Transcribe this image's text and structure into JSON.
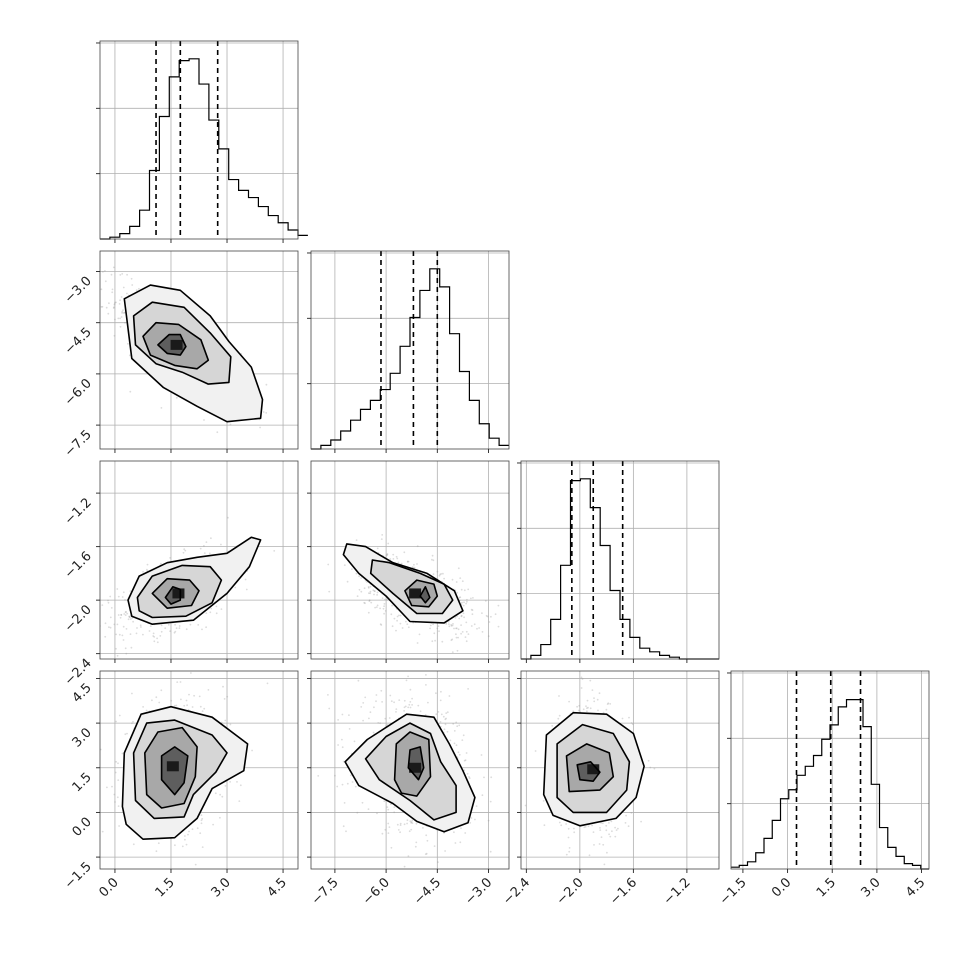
{
  "chart_data": {
    "type": "corner",
    "grid": true,
    "parameters": [
      {
        "range": [
          -0.4,
          4.9
        ],
        "ticks": [
          "0.0",
          "1.5",
          "3.0",
          "4.5"
        ],
        "tick_values": [
          0.0,
          1.5,
          3.0,
          4.5
        ],
        "quantiles": [
          1.1,
          1.75,
          2.75
        ],
        "hist": {
          "edges_start": -0.4,
          "bin_width": 0.265,
          "values": [
            0,
            1,
            3,
            7,
            16,
            38,
            68,
            90,
            99,
            100,
            86,
            66,
            50,
            33,
            27,
            23,
            18,
            13,
            9,
            5,
            2
          ]
        }
      },
      {
        "range": [
          -8.2,
          -2.4
        ],
        "ticks": [
          "-7.5",
          "-6.0",
          "-4.5",
          "-3.0"
        ],
        "tick_values": [
          -7.5,
          -6.0,
          -4.5,
          -3.0
        ],
        "quantiles": [
          -6.15,
          -5.2,
          -4.5
        ],
        "hist": {
          "edges_start": -8.2,
          "bin_width": 0.29,
          "values": [
            0,
            2,
            5,
            10,
            16,
            22,
            27,
            33,
            42,
            57,
            73,
            88,
            100,
            90,
            64,
            43,
            27,
            14,
            6,
            2
          ]
        }
      },
      {
        "range": [
          -2.44,
          -0.96
        ],
        "ticks": [
          "-2.4",
          "-2.0",
          "-1.6",
          "-1.2"
        ],
        "tick_values": [
          -2.4,
          -2.0,
          -1.6,
          -1.2
        ],
        "quantiles": [
          -2.06,
          -1.9,
          -1.68
        ],
        "hist": {
          "edges_start": -2.44,
          "bin_width": 0.074,
          "values": [
            0,
            2,
            8,
            22,
            52,
            99,
            100,
            84,
            63,
            38,
            22,
            12,
            6,
            4,
            2,
            1,
            0,
            0,
            0,
            0
          ]
        }
      },
      {
        "range": [
          -1.9,
          4.75
        ],
        "ticks": [
          "-1.5",
          "0.0",
          "1.5",
          "3.0",
          "4.5"
        ],
        "tick_values": [
          -1.5,
          0.0,
          1.5,
          3.0,
          4.5
        ],
        "quantiles": [
          0.3,
          1.45,
          2.45
        ],
        "hist": {
          "edges_start": -1.9,
          "bin_width": 0.2771,
          "values": [
            1,
            2,
            4,
            9,
            17,
            27,
            39,
            44,
            52,
            57,
            63,
            72,
            80,
            90,
            94,
            94,
            79,
            47,
            23,
            12,
            7,
            3,
            2,
            0
          ]
        }
      }
    ],
    "pairs": [
      {
        "row": 1,
        "col": 0,
        "center": [
          1.65,
          -5.15
        ],
        "sd": [
          0.8,
          0.85
        ],
        "rho": -0.75,
        "contours": [
          [
            [
              1.15,
              -5.15
            ],
            [
              1.45,
              -4.85
            ],
            [
              1.75,
              -4.85
            ],
            [
              1.9,
              -5.2
            ],
            [
              1.75,
              -5.45
            ],
            [
              1.4,
              -5.4
            ]
          ],
          [
            [
              0.75,
              -4.9
            ],
            [
              1.1,
              -4.5
            ],
            [
              1.7,
              -4.55
            ],
            [
              2.3,
              -5.0
            ],
            [
              2.5,
              -5.6
            ],
            [
              2.2,
              -5.85
            ],
            [
              1.6,
              -5.75
            ],
            [
              0.95,
              -5.45
            ]
          ],
          [
            [
              0.5,
              -4.3
            ],
            [
              1.0,
              -3.9
            ],
            [
              1.85,
              -4.05
            ],
            [
              2.55,
              -4.8
            ],
            [
              3.1,
              -5.5
            ],
            [
              3.05,
              -6.25
            ],
            [
              2.5,
              -6.3
            ],
            [
              1.8,
              -5.95
            ],
            [
              1.1,
              -5.7
            ],
            [
              0.55,
              -5.15
            ]
          ],
          [
            [
              0.25,
              -3.8
            ],
            [
              0.95,
              -3.4
            ],
            [
              1.75,
              -3.55
            ],
            [
              2.55,
              -4.3
            ],
            [
              3.05,
              -5.05
            ],
            [
              3.65,
              -5.8
            ],
            [
              3.95,
              -6.75
            ],
            [
              3.9,
              -7.3
            ],
            [
              3.0,
              -7.4
            ],
            [
              2.2,
              -6.95
            ],
            [
              1.3,
              -6.4
            ],
            [
              0.45,
              -5.55
            ]
          ]
        ]
      },
      {
        "row": 2,
        "col": 0,
        "center": [
          1.7,
          -1.95
        ],
        "sd": [
          0.8,
          0.15
        ],
        "rho": 0.55,
        "contours": [
          [
            [
              1.35,
              -1.98
            ],
            [
              1.55,
              -1.9
            ],
            [
              1.75,
              -1.92
            ],
            [
              1.75,
              -2.0
            ],
            [
              1.5,
              -2.03
            ]
          ],
          [
            [
              1.0,
              -1.95
            ],
            [
              1.4,
              -1.84
            ],
            [
              2.0,
              -1.85
            ],
            [
              2.25,
              -1.93
            ],
            [
              2.05,
              -2.04
            ],
            [
              1.4,
              -2.06
            ]
          ],
          [
            [
              0.6,
              -1.98
            ],
            [
              1.0,
              -1.82
            ],
            [
              1.8,
              -1.74
            ],
            [
              2.55,
              -1.75
            ],
            [
              2.85,
              -1.85
            ],
            [
              2.6,
              -2.02
            ],
            [
              1.9,
              -2.12
            ],
            [
              1.0,
              -2.13
            ],
            [
              0.65,
              -2.08
            ]
          ],
          [
            [
              0.35,
              -2.0
            ],
            [
              0.65,
              -1.82
            ],
            [
              1.4,
              -1.72
            ],
            [
              2.2,
              -1.68
            ],
            [
              3.0,
              -1.65
            ],
            [
              3.65,
              -1.53
            ],
            [
              3.9,
              -1.55
            ],
            [
              3.6,
              -1.75
            ],
            [
              3.0,
              -1.95
            ],
            [
              2.1,
              -2.15
            ],
            [
              1.0,
              -2.18
            ],
            [
              0.45,
              -2.12
            ]
          ]
        ]
      },
      {
        "row": 2,
        "col": 1,
        "center": [
          -5.15,
          -1.95
        ],
        "sd": [
          0.85,
          0.15
        ],
        "rho": -0.55,
        "contours": [
          [
            [
              -5.0,
              -1.97
            ],
            [
              -4.85,
              -1.9
            ],
            [
              -4.72,
              -1.98
            ],
            [
              -4.85,
              -2.02
            ]
          ],
          [
            [
              -5.45,
              -1.93
            ],
            [
              -5.1,
              -1.85
            ],
            [
              -4.6,
              -1.88
            ],
            [
              -4.5,
              -1.97
            ],
            [
              -4.75,
              -2.05
            ],
            [
              -5.25,
              -2.04
            ]
          ],
          [
            [
              -6.4,
              -1.7
            ],
            [
              -5.9,
              -1.72
            ],
            [
              -5.0,
              -1.8
            ],
            [
              -4.3,
              -1.88
            ],
            [
              -4.05,
              -2.0
            ],
            [
              -4.35,
              -2.1
            ],
            [
              -5.1,
              -2.1
            ],
            [
              -5.8,
              -1.95
            ],
            [
              -6.45,
              -1.8
            ]
          ],
          [
            [
              -7.15,
              -1.58
            ],
            [
              -6.6,
              -1.6
            ],
            [
              -5.8,
              -1.72
            ],
            [
              -4.8,
              -1.8
            ],
            [
              -4.0,
              -1.93
            ],
            [
              -3.75,
              -2.08
            ],
            [
              -4.3,
              -2.17
            ],
            [
              -5.3,
              -2.16
            ],
            [
              -6.0,
              -1.97
            ],
            [
              -6.8,
              -1.8
            ],
            [
              -7.25,
              -1.66
            ]
          ]
        ]
      },
      {
        "row": 3,
        "col": 0,
        "center": [
          1.55,
          1.55
        ],
        "sd": [
          0.7,
          1.1
        ],
        "rho": 0.1,
        "contours": [
          [
            [
              1.25,
              1.1
            ],
            [
              1.25,
              1.9
            ],
            [
              1.6,
              2.2
            ],
            [
              1.95,
              1.9
            ],
            [
              1.85,
              1.0
            ],
            [
              1.6,
              0.6
            ]
          ],
          [
            [
              0.85,
              0.6
            ],
            [
              0.8,
              2.0
            ],
            [
              1.15,
              2.7
            ],
            [
              1.8,
              2.85
            ],
            [
              2.2,
              2.2
            ],
            [
              2.15,
              1.2
            ],
            [
              1.85,
              0.3
            ],
            [
              1.25,
              0.15
            ]
          ],
          [
            [
              0.55,
              0.4
            ],
            [
              0.5,
              2.0
            ],
            [
              0.85,
              3.0
            ],
            [
              1.6,
              3.1
            ],
            [
              2.6,
              2.6
            ],
            [
              3.0,
              2.0
            ],
            [
              2.7,
              1.35
            ],
            [
              2.1,
              0.6
            ],
            [
              1.85,
              -0.15
            ],
            [
              1.05,
              -0.2
            ]
          ],
          [
            [
              0.2,
              0.2
            ],
            [
              0.25,
              2.0
            ],
            [
              0.7,
              3.3
            ],
            [
              1.5,
              3.55
            ],
            [
              2.6,
              3.2
            ],
            [
              3.55,
              2.3
            ],
            [
              3.45,
              1.4
            ],
            [
              2.6,
              0.8
            ],
            [
              2.2,
              -0.2
            ],
            [
              1.6,
              -0.85
            ],
            [
              0.75,
              -0.9
            ],
            [
              0.3,
              -0.4
            ]
          ]
        ]
      },
      {
        "row": 3,
        "col": 1,
        "center": [
          -5.15,
          1.5
        ],
        "sd": [
          0.85,
          1.1
        ],
        "rho": -0.2,
        "contours": [
          [
            [
              -5.35,
              1.5
            ],
            [
              -5.3,
              2.1
            ],
            [
              -5.0,
              2.2
            ],
            [
              -4.9,
              1.5
            ],
            [
              -5.05,
              1.1
            ]
          ],
          [
            [
              -5.75,
              1.1
            ],
            [
              -5.7,
              2.3
            ],
            [
              -5.3,
              2.7
            ],
            [
              -4.75,
              2.45
            ],
            [
              -4.7,
              1.2
            ],
            [
              -5.1,
              0.55
            ],
            [
              -5.55,
              0.65
            ]
          ],
          [
            [
              -6.6,
              1.8
            ],
            [
              -6.0,
              2.55
            ],
            [
              -5.3,
              3.0
            ],
            [
              -4.7,
              2.65
            ],
            [
              -4.4,
              1.7
            ],
            [
              -3.95,
              0.9
            ],
            [
              -3.95,
              0.0
            ],
            [
              -4.6,
              -0.25
            ],
            [
              -5.3,
              0.4
            ],
            [
              -6.2,
              1.1
            ]
          ],
          [
            [
              -7.2,
              1.7
            ],
            [
              -6.55,
              2.45
            ],
            [
              -5.4,
              3.3
            ],
            [
              -4.6,
              3.2
            ],
            [
              -4.15,
              2.3
            ],
            [
              -3.75,
              1.4
            ],
            [
              -3.4,
              0.5
            ],
            [
              -3.6,
              -0.35
            ],
            [
              -4.3,
              -0.65
            ],
            [
              -5.1,
              -0.3
            ],
            [
              -5.8,
              0.3
            ],
            [
              -6.8,
              0.9
            ]
          ]
        ]
      },
      {
        "row": 3,
        "col": 2,
        "center": [
          -1.9,
          1.45
        ],
        "sd": [
          0.14,
          1.1
        ],
        "rho": -0.1,
        "contours": [
          [
            [
              -2.0,
              1.1
            ],
            [
              -2.02,
              1.6
            ],
            [
              -1.92,
              1.7
            ],
            [
              -1.85,
              1.35
            ],
            [
              -1.9,
              1.05
            ]
          ],
          [
            [
              -2.08,
              0.7
            ],
            [
              -2.1,
              1.9
            ],
            [
              -1.95,
              2.3
            ],
            [
              -1.78,
              2.0
            ],
            [
              -1.75,
              1.2
            ],
            [
              -1.85,
              0.75
            ]
          ],
          [
            [
              -2.17,
              0.5
            ],
            [
              -2.17,
              2.3
            ],
            [
              -1.98,
              2.95
            ],
            [
              -1.75,
              2.65
            ],
            [
              -1.63,
              1.7
            ],
            [
              -1.65,
              0.75
            ],
            [
              -1.8,
              0.0
            ],
            [
              -2.05,
              0.0
            ]
          ],
          [
            [
              -2.27,
              0.6
            ],
            [
              -2.25,
              2.6
            ],
            [
              -2.05,
              3.35
            ],
            [
              -1.8,
              3.3
            ],
            [
              -1.6,
              2.65
            ],
            [
              -1.52,
              1.55
            ],
            [
              -1.58,
              0.5
            ],
            [
              -1.73,
              -0.2
            ],
            [
              -2.0,
              -0.45
            ],
            [
              -2.2,
              -0.1
            ]
          ]
        ]
      }
    ]
  }
}
